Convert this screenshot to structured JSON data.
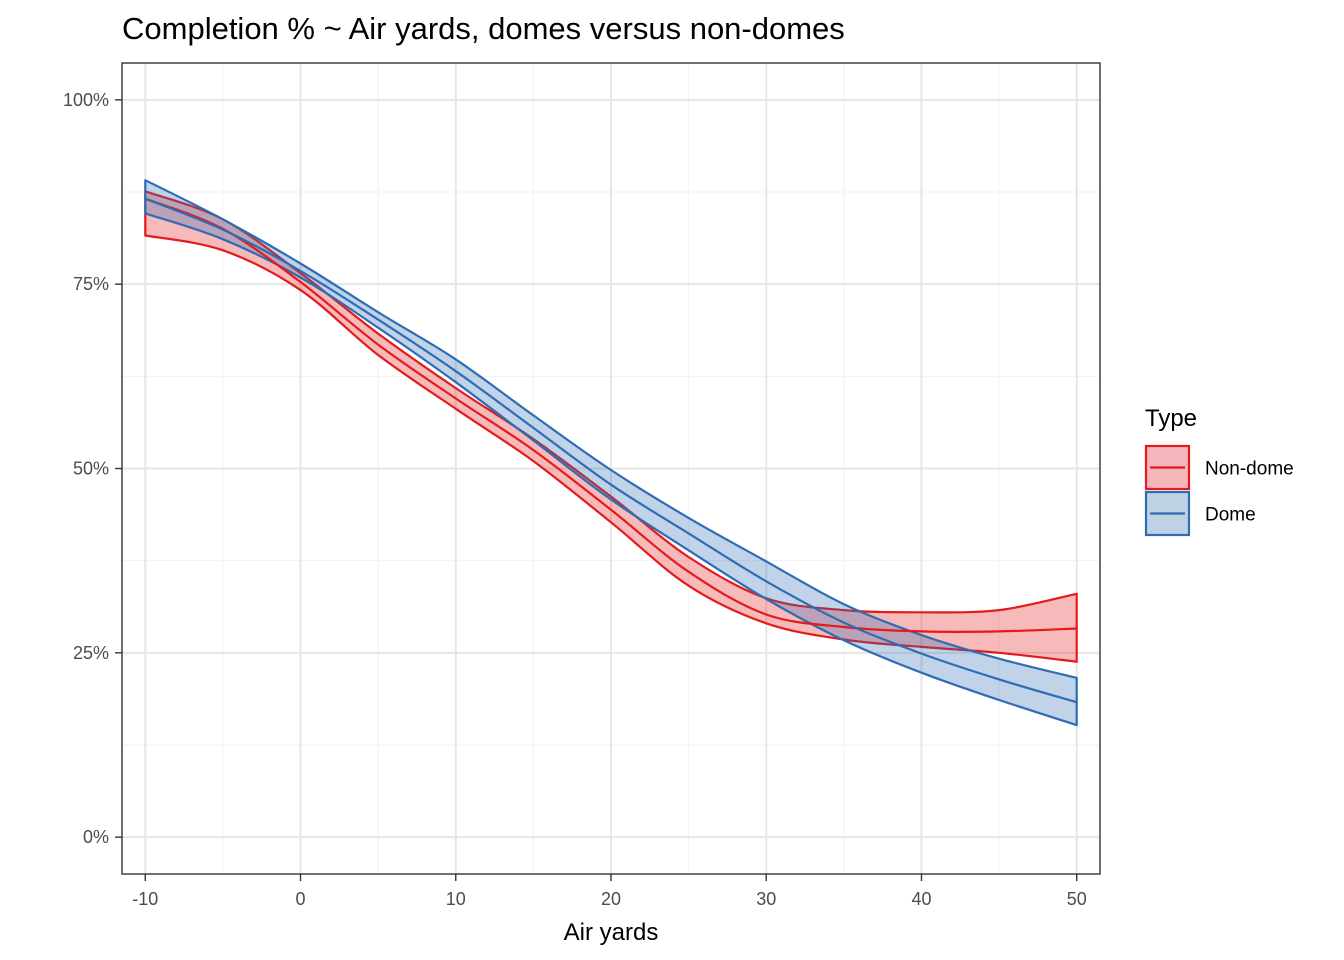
{
  "chart_data": {
    "type": "line",
    "title": "Completion % ~ Air yards, domes versus non-domes",
    "xlabel": "Air yards",
    "ylabel": "",
    "xlim": [
      -11.5,
      51.5
    ],
    "ylim": [
      -0.05,
      1.05
    ],
    "x_ticks": [
      -10,
      0,
      10,
      20,
      30,
      40,
      50
    ],
    "x_tick_labels": [
      "-10",
      "0",
      "10",
      "20",
      "30",
      "40",
      "50"
    ],
    "y_ticks": [
      0,
      0.25,
      0.5,
      0.75,
      1.0
    ],
    "y_tick_labels": [
      "0%",
      "25%",
      "50%",
      "75%",
      "100%"
    ],
    "grid": true,
    "legend": {
      "title": "Type",
      "position": "right"
    },
    "x": [
      -10,
      -5,
      0,
      5,
      10,
      15,
      20,
      25,
      30,
      35,
      40,
      45,
      50
    ],
    "series": [
      {
        "name": "Non-dome",
        "color": "#E41A1C",
        "fill": "#F4B6BB",
        "fit": [
          0.866,
          0.825,
          0.753,
          0.668,
          0.595,
          0.525,
          0.444,
          0.36,
          0.302,
          0.285,
          0.279,
          0.279,
          0.283
        ],
        "lower": [
          0.816,
          0.796,
          0.742,
          0.654,
          0.581,
          0.51,
          0.427,
          0.341,
          0.29,
          0.268,
          0.258,
          0.25,
          0.238
        ],
        "upper": [
          0.876,
          0.838,
          0.765,
          0.683,
          0.609,
          0.54,
          0.462,
          0.38,
          0.324,
          0.308,
          0.305,
          0.308,
          0.33
        ]
      },
      {
        "name": "Dome",
        "color": "#2E6DB4",
        "fill": "#BFD1E5",
        "fit": [
          0.866,
          0.824,
          0.768,
          0.702,
          0.632,
          0.555,
          0.478,
          0.412,
          0.347,
          0.291,
          0.249,
          0.214,
          0.183
        ],
        "lower": [
          0.846,
          0.811,
          0.759,
          0.691,
          0.617,
          0.538,
          0.458,
          0.389,
          0.323,
          0.267,
          0.223,
          0.186,
          0.152
        ],
        "upper": [
          0.891,
          0.838,
          0.778,
          0.712,
          0.648,
          0.572,
          0.498,
          0.433,
          0.374,
          0.316,
          0.274,
          0.242,
          0.216
        ]
      }
    ]
  }
}
